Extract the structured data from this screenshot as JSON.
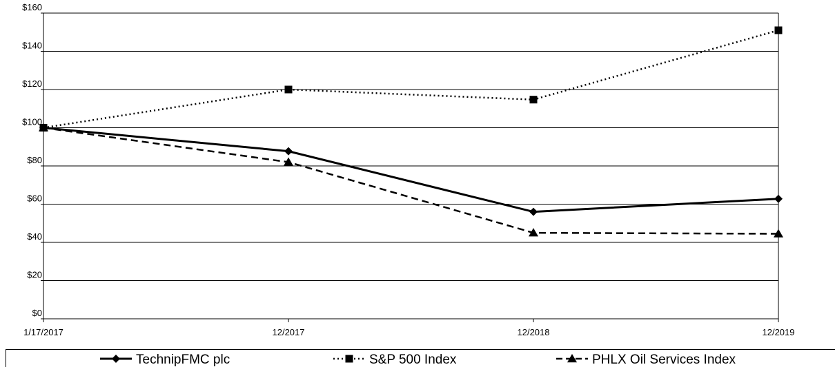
{
  "chart_data": {
    "type": "line",
    "title": "",
    "xlabel": "",
    "ylabel": "",
    "categories": [
      "1/17/2017",
      "12/2017",
      "12/2018",
      "12/2019"
    ],
    "ylim": [
      0,
      160
    ],
    "yticks": [
      0,
      20,
      40,
      60,
      80,
      100,
      120,
      140,
      160
    ],
    "ytick_labels": [
      "$0",
      "$20",
      "$40",
      "$60",
      "$80",
      "$100",
      "$120",
      "$140",
      "$160"
    ],
    "grid": "horizontal",
    "legend_position": "bottom",
    "series": [
      {
        "name": "TechnipFMC plc",
        "values": [
          100,
          87.7,
          56,
          62.8
        ],
        "line_style": "solid",
        "marker": "diamond",
        "color": "#000000"
      },
      {
        "name": "S&P 500 Index",
        "values": [
          100,
          120,
          114.7,
          151
        ],
        "line_style": "dotted",
        "marker": "square",
        "color": "#000000"
      },
      {
        "name": "PHLX Oil Services Index",
        "values": [
          100,
          82,
          45,
          44.5
        ],
        "line_style": "dashed",
        "marker": "triangle",
        "color": "#000000"
      }
    ]
  }
}
